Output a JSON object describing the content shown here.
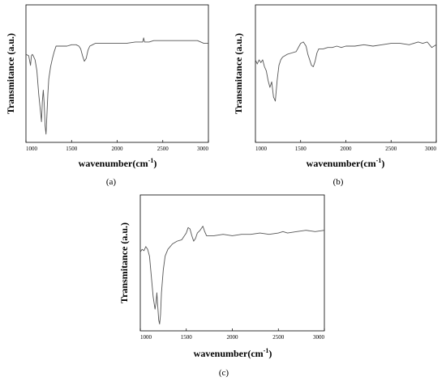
{
  "chart_data": [
    {
      "type": "line",
      "panel_label": "(a)",
      "xlabel": "wavenumber(cm",
      "xlabel_sup": "-1",
      "xlabel_tail": ")",
      "ylabel": "Transmitance (a.u.)",
      "xlim": [
        1000,
        3000
      ],
      "ylim": [
        0,
        1
      ],
      "xticks": [
        "1000",
        "1500",
        "2000",
        "2500",
        "3000"
      ],
      "series": [
        {
          "x": [
            1000,
            1030,
            1050,
            1060,
            1070,
            1080,
            1100,
            1120,
            1140,
            1160,
            1170,
            1180,
            1190,
            1200,
            1210,
            1220,
            1230,
            1240,
            1250,
            1270,
            1290,
            1310,
            1330,
            1360,
            1400,
            1450,
            1500,
            1550,
            1580,
            1600,
            1620,
            1640,
            1660,
            1680,
            1700,
            1730,
            1760,
            1800,
            1900,
            2000,
            2100,
            2200,
            2280,
            2290,
            2300,
            2350,
            2400,
            2500,
            2600,
            2700,
            2800,
            2880,
            2950,
            3000
          ],
          "y": [
            0.64,
            0.63,
            0.56,
            0.63,
            0.64,
            0.63,
            0.6,
            0.52,
            0.35,
            0.22,
            0.15,
            0.3,
            0.38,
            0.28,
            0.12,
            0.06,
            0.2,
            0.35,
            0.46,
            0.55,
            0.61,
            0.66,
            0.7,
            0.7,
            0.7,
            0.7,
            0.71,
            0.71,
            0.7,
            0.68,
            0.63,
            0.59,
            0.61,
            0.67,
            0.7,
            0.71,
            0.72,
            0.72,
            0.72,
            0.72,
            0.72,
            0.73,
            0.73,
            0.76,
            0.73,
            0.73,
            0.74,
            0.74,
            0.74,
            0.74,
            0.74,
            0.74,
            0.72,
            0.72
          ]
        }
      ]
    },
    {
      "type": "line",
      "panel_label": "(b)",
      "xlabel": "wavenumber(cm",
      "xlabel_sup": "-1",
      "xlabel_tail": ")",
      "ylabel": "Transmitance (a.u.)",
      "xlim": [
        1000,
        3000
      ],
      "ylim": [
        0,
        1
      ],
      "xticks": [
        "1000",
        "1500",
        "2000",
        "2500",
        "3000"
      ],
      "series": [
        {
          "x": [
            1000,
            1020,
            1040,
            1060,
            1080,
            1100,
            1120,
            1140,
            1160,
            1180,
            1200,
            1220,
            1240,
            1260,
            1280,
            1300,
            1350,
            1400,
            1450,
            1500,
            1530,
            1560,
            1580,
            1600,
            1620,
            1640,
            1660,
            1680,
            1700,
            1750,
            1800,
            1850,
            1900,
            1950,
            2000,
            2100,
            2200,
            2300,
            2400,
            2500,
            2600,
            2700,
            2800,
            2850,
            2900,
            2950,
            3000
          ],
          "y": [
            0.6,
            0.57,
            0.6,
            0.58,
            0.6,
            0.55,
            0.52,
            0.45,
            0.4,
            0.44,
            0.33,
            0.3,
            0.45,
            0.56,
            0.6,
            0.62,
            0.64,
            0.65,
            0.66,
            0.72,
            0.73,
            0.7,
            0.64,
            0.6,
            0.56,
            0.55,
            0.59,
            0.65,
            0.68,
            0.68,
            0.69,
            0.69,
            0.7,
            0.69,
            0.7,
            0.7,
            0.71,
            0.7,
            0.71,
            0.72,
            0.72,
            0.71,
            0.73,
            0.72,
            0.73,
            0.69,
            0.71
          ]
        }
      ]
    },
    {
      "type": "line",
      "panel_label": "(c)",
      "xlabel": "wavenumber(cm",
      "xlabel_sup": "-1",
      "xlabel_tail": ")",
      "ylabel": "Transmitance (a.u.)",
      "xlim": [
        1000,
        3000
      ],
      "ylim": [
        0,
        1
      ],
      "xticks": [
        "1000",
        "1500",
        "2000",
        "2500",
        "3000"
      ],
      "series": [
        {
          "x": [
            1000,
            1020,
            1040,
            1060,
            1080,
            1100,
            1120,
            1140,
            1160,
            1170,
            1180,
            1190,
            1200,
            1210,
            1220,
            1230,
            1250,
            1270,
            1300,
            1350,
            1400,
            1450,
            1500,
            1520,
            1540,
            1560,
            1580,
            1600,
            1620,
            1650,
            1680,
            1700,
            1720,
            1750,
            1800,
            1900,
            2000,
            2100,
            2200,
            2300,
            2400,
            2500,
            2550,
            2600,
            2700,
            2800,
            2900,
            3000
          ],
          "y": [
            0.58,
            0.6,
            0.59,
            0.62,
            0.6,
            0.55,
            0.4,
            0.25,
            0.16,
            0.2,
            0.28,
            0.18,
            0.08,
            0.05,
            0.12,
            0.28,
            0.45,
            0.55,
            0.6,
            0.64,
            0.66,
            0.67,
            0.72,
            0.76,
            0.75,
            0.7,
            0.66,
            0.68,
            0.72,
            0.74,
            0.77,
            0.73,
            0.7,
            0.7,
            0.7,
            0.71,
            0.7,
            0.71,
            0.71,
            0.72,
            0.71,
            0.72,
            0.73,
            0.72,
            0.73,
            0.74,
            0.73,
            0.74
          ]
        }
      ]
    }
  ]
}
